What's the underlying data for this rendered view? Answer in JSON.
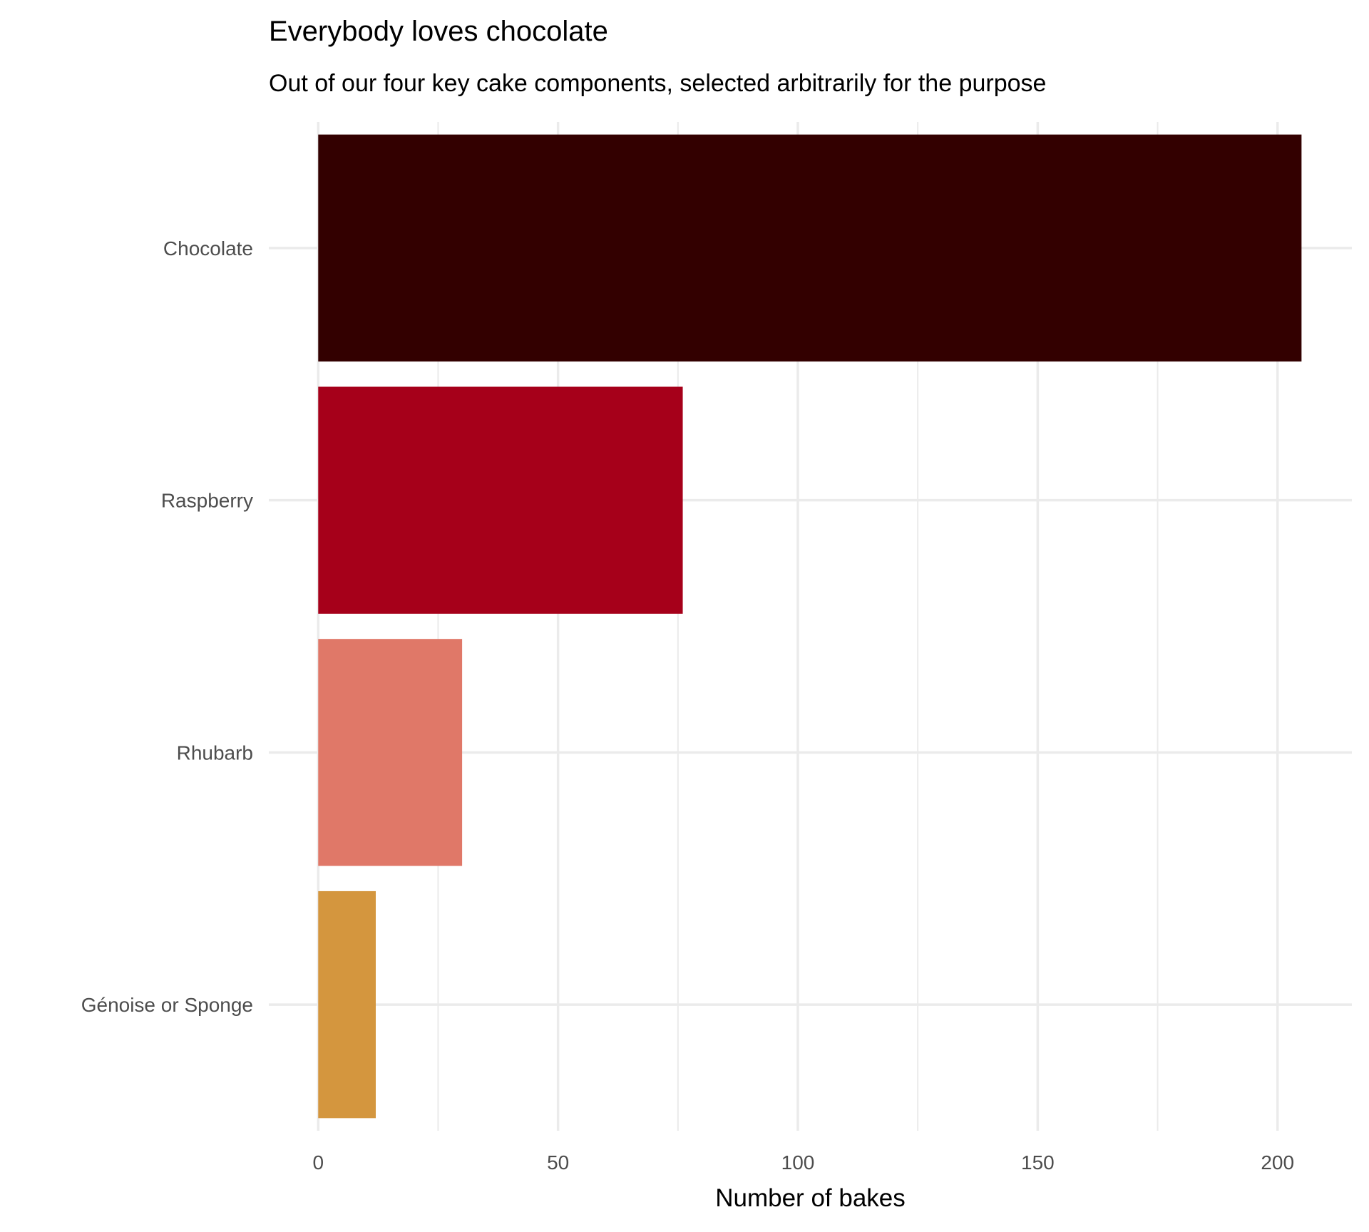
{
  "chart_data": {
    "type": "bar",
    "orientation": "horizontal",
    "title": "Everybody loves chocolate",
    "subtitle": "Out of our four key cake components, selected arbitrarily for the purpose",
    "xlabel": "Number of bakes",
    "ylabel": "",
    "categories": [
      "Chocolate",
      "Raspberry",
      "Rhubarb",
      "Génoise or Sponge"
    ],
    "values": [
      205,
      76,
      30,
      12
    ],
    "colors": [
      "#330000",
      "#A6001A",
      "#E07868",
      "#D4963E"
    ],
    "xlim": [
      -10.3,
      215.5
    ],
    "xticks": [
      0,
      50,
      100,
      150,
      200
    ],
    "xtick_labels": [
      "0",
      "50",
      "100",
      "150",
      "200"
    ],
    "grid": true,
    "legend": "none"
  }
}
